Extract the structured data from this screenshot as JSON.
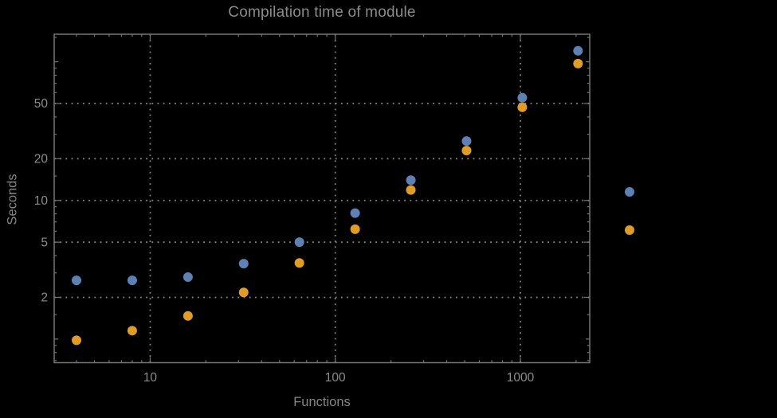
{
  "window": {
    "background": "#000000"
  },
  "chart_data": {
    "type": "scatter",
    "title": "Compilation time of module",
    "xlabel": "Functions",
    "ylabel": "Seconds",
    "x_scale": "log",
    "y_scale": "log",
    "xlim": [
      3.03,
      2369
    ],
    "ylim": [
      0.676,
      158
    ],
    "grid": "dotted",
    "legend_position": "right-outside",
    "legend_labels_visible": false,
    "x": [
      4,
      8,
      16,
      32,
      64,
      128,
      256,
      512,
      1024,
      2048
    ],
    "series": [
      {
        "name": "series-blue",
        "color": "#5E81B5",
        "values": [
          2.65,
          2.65,
          2.8,
          3.5,
          5.0,
          8.1,
          14.0,
          26.8,
          55,
          120
        ]
      },
      {
        "name": "series-orange",
        "color": "#E19C24",
        "values": [
          0.98,
          1.15,
          1.47,
          2.17,
          3.54,
          6.2,
          11.9,
          22.9,
          47,
          97
        ]
      }
    ],
    "x_ticks": {
      "major": [
        {
          "v": 10,
          "label": "10"
        },
        {
          "v": 100,
          "label": "100"
        },
        {
          "v": 1000,
          "label": "1000"
        }
      ],
      "minor": [
        4,
        5,
        6,
        7,
        8,
        9,
        20,
        30,
        40,
        50,
        60,
        70,
        80,
        90,
        200,
        300,
        400,
        500,
        600,
        700,
        800,
        900,
        2000
      ]
    },
    "y_ticks": {
      "major": [
        {
          "v": 2,
          "label": "2"
        },
        {
          "v": 5,
          "label": "5"
        },
        {
          "v": 10,
          "label": "10"
        },
        {
          "v": 20,
          "label": "20"
        },
        {
          "v": 50,
          "label": "50"
        }
      ],
      "medium": [
        1,
        100
      ],
      "minor": [
        0.7,
        0.8,
        0.9,
        1.5,
        3,
        4,
        6,
        7,
        8,
        9,
        15,
        30,
        40,
        60,
        70,
        80,
        90,
        150
      ]
    },
    "x_gridlines": [
      10,
      100,
      1000
    ],
    "y_gridlines": [
      2,
      5,
      10,
      20,
      50
    ]
  },
  "colors": {
    "background": "#000000",
    "frame": "#757575",
    "grid": "#878787",
    "tick_text": "#8c8c8c",
    "label_text": "#868686"
  }
}
